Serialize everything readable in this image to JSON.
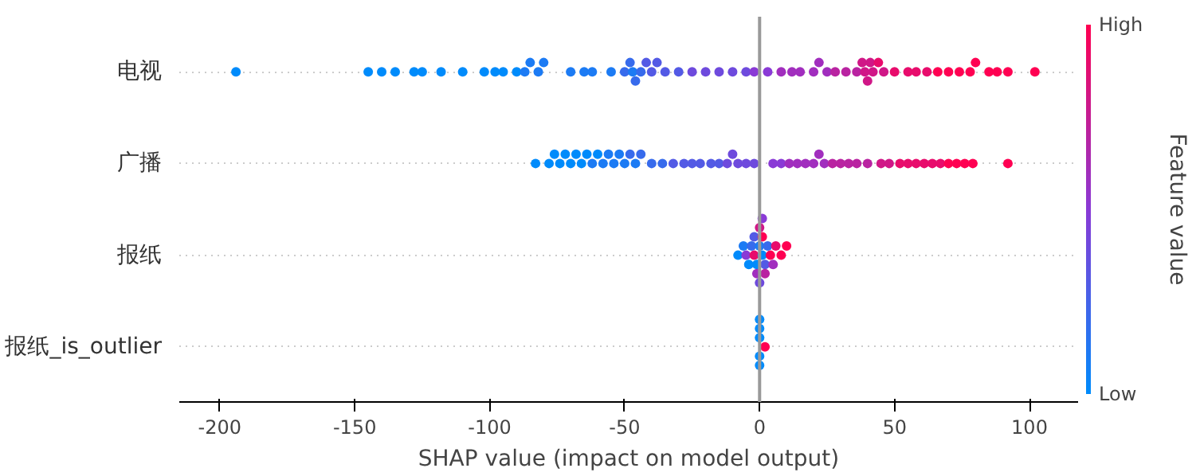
{
  "chart_data": {
    "type": "scatter",
    "xlabel": "SHAP value (impact on model output)",
    "clabel": "Feature value",
    "categories": [
      "电视",
      "广播",
      "报纸",
      "报纸_is_outlier"
    ],
    "orientation": "horizontal",
    "colors": [
      "#008bfb",
      "#8a3ad6",
      "#ff0052"
    ],
    "series": [
      {
        "x": [
          "电视",
          "电视",
          "电视",
          "电视",
          "电视",
          "电视",
          "电视",
          "电视",
          "电视",
          "电视",
          "电视",
          "电视",
          "电视",
          "电视",
          "电视",
          "电视",
          "电视",
          "电视",
          "电视",
          "电视",
          "电视",
          "电视",
          "电视",
          "电视",
          "电视",
          "电视",
          "电视",
          "电视",
          "电视",
          "电视",
          "电视",
          "电视",
          "电视",
          "电视",
          "电视",
          "电视",
          "电视",
          "电视",
          "电视",
          "电视",
          "电视",
          "电视",
          "电视",
          "电视",
          "电视",
          "电视",
          "电视",
          "电视",
          "电视",
          "电视",
          "电视",
          "电视",
          "电视",
          "电视",
          "电视",
          "电视",
          "电视",
          "电视",
          "电视",
          "电视",
          "电视",
          "电视",
          "电视",
          "电视",
          "电视",
          "电视"
        ],
        "values": [
          -194,
          -145,
          -140,
          -135,
          -128,
          -125,
          -118,
          -110,
          -102,
          -98,
          -95,
          -90,
          -87,
          -85,
          -82,
          -80,
          -70,
          -65,
          -62,
          -55,
          -50,
          -48,
          -47,
          -46,
          -44,
          -42,
          -40,
          -38,
          -35,
          -30,
          -25,
          -20,
          -15,
          -10,
          -5,
          -2,
          3,
          8,
          12,
          15,
          20,
          22,
          25,
          28,
          32,
          36,
          38,
          39,
          40,
          41,
          42,
          44,
          46,
          50,
          55,
          58,
          62,
          66,
          70,
          74,
          78,
          80,
          85,
          88,
          92,
          102
        ],
        "colors": [
          "#008bfb",
          "#008bfb",
          "#008bfb",
          "#008bfb",
          "#008bfb",
          "#008bfb",
          "#008bfb",
          "#008bfb",
          "#008bfb",
          "#008bfb",
          "#008bfb",
          "#008bfb",
          "#1c7bf4",
          "#1c7bf4",
          "#1c7bf4",
          "#1c7bf4",
          "#1c7bf4",
          "#1c7bf4",
          "#1c7bf4",
          "#1c7bf4",
          "#376bec",
          "#376bec",
          "#1c7bf4",
          "#376bec",
          "#376bec",
          "#535ae5",
          "#535ae5",
          "#535ae5",
          "#535ae5",
          "#535ae5",
          "#6e4add",
          "#6e4add",
          "#6e4add",
          "#6e4add",
          "#6e4add",
          "#8a3ad6",
          "#8a3ad6",
          "#a12ebe",
          "#a12ebe",
          "#a12ebe",
          "#a12ebe",
          "#a12ebe",
          "#a12ebe",
          "#b923a1",
          "#b923a1",
          "#b923a1",
          "#d01787",
          "#d01787",
          "#d01787",
          "#d01787",
          "#d01787",
          "#e80c6c",
          "#d01787",
          "#e80c6c",
          "#e80c6c",
          "#e80c6c",
          "#e80c6c",
          "#ff0052",
          "#ff0052",
          "#ff0052",
          "#ff0052",
          "#ff0052",
          "#ff0052",
          "#ff0052",
          "#ff0052",
          "#ff0052"
        ]
      },
      {
        "x": [
          "广播",
          "广播",
          "广播",
          "广播",
          "广播",
          "广播",
          "广播",
          "广播",
          "广播",
          "广播",
          "广播",
          "广播",
          "广播",
          "广播",
          "广播",
          "广播",
          "广播",
          "广播",
          "广播",
          "广播",
          "广播",
          "广播",
          "广播",
          "广播",
          "广播",
          "广播",
          "广播",
          "广播",
          "广播",
          "广播",
          "广播",
          "广播",
          "广播",
          "广播",
          "广播",
          "广播",
          "广播",
          "广播",
          "广播",
          "广播",
          "广播",
          "广播",
          "广播",
          "广播",
          "广播",
          "广播",
          "广播",
          "广播",
          "广播",
          "广播",
          "广播",
          "广播",
          "广播",
          "广播",
          "广播",
          "广播",
          "广播",
          "广播"
        ],
        "values": [
          -83,
          -78,
          -76,
          -74,
          -72,
          -70,
          -68,
          -66,
          -64,
          -62,
          -60,
          -58,
          -56,
          -54,
          -52,
          -50,
          -48,
          -46,
          -44,
          -40,
          -36,
          -32,
          -28,
          -25,
          -22,
          -18,
          -15,
          -12,
          -10,
          -8,
          -5,
          -2,
          5,
          8,
          11,
          14,
          17,
          20,
          22,
          24,
          27,
          30,
          33,
          36,
          40,
          45,
          48,
          52,
          55,
          58,
          61,
          64,
          67,
          70,
          73,
          76,
          79,
          92
        ],
        "colors": [
          "#008bfb",
          "#008bfb",
          "#008bfb",
          "#008bfb",
          "#008bfb",
          "#008bfb",
          "#008bfb",
          "#008bfb",
          "#008bfb",
          "#1c7bf4",
          "#008bfb",
          "#1c7bf4",
          "#1c7bf4",
          "#1c7bf4",
          "#1c7bf4",
          "#1c7bf4",
          "#376bec",
          "#1c7bf4",
          "#376bec",
          "#376bec",
          "#376bec",
          "#535ae5",
          "#535ae5",
          "#535ae5",
          "#535ae5",
          "#535ae5",
          "#535ae5",
          "#6e4add",
          "#6e4add",
          "#6e4add",
          "#6e4add",
          "#6e4add",
          "#8a3ad6",
          "#8a3ad6",
          "#a12ebe",
          "#a12ebe",
          "#a12ebe",
          "#a12ebe",
          "#a12ebe",
          "#a12ebe",
          "#b923a1",
          "#b923a1",
          "#b923a1",
          "#b923a1",
          "#b923a1",
          "#d01787",
          "#d01787",
          "#e80c6c",
          "#e80c6c",
          "#e80c6c",
          "#e80c6c",
          "#e80c6c",
          "#e80c6c",
          "#ff0052",
          "#ff0052",
          "#ff0052",
          "#ff0052",
          "#ff0052"
        ]
      },
      {
        "x": [
          "报纸",
          "报纸",
          "报纸",
          "报纸",
          "报纸",
          "报纸",
          "报纸",
          "报纸",
          "报纸",
          "报纸",
          "报纸",
          "报纸",
          "报纸",
          "报纸",
          "报纸",
          "报纸",
          "报纸",
          "报纸",
          "报纸",
          "报纸",
          "报纸",
          "报纸",
          "报纸"
        ],
        "values": [
          -8,
          -6,
          -5,
          -4,
          -3,
          -2,
          -2,
          -1,
          -1,
          0,
          0,
          0,
          1,
          1,
          1,
          2,
          2,
          3,
          4,
          5,
          6,
          8,
          10
        ],
        "colors": [
          "#008bfb",
          "#1c7bf4",
          "#8a3ad6",
          "#008bfb",
          "#376bec",
          "#e80c6c",
          "#535ae5",
          "#008bfb",
          "#a12ebe",
          "#1c7bf4",
          "#d01787",
          "#6e4add",
          "#008bfb",
          "#ff0052",
          "#8a3ad6",
          "#535ae5",
          "#b923a1",
          "#376bec",
          "#ff0052",
          "#a12ebe",
          "#e80c6c",
          "#ff0052",
          "#ff0052"
        ]
      },
      {
        "x": [
          "报纸_is_outlier",
          "报纸_is_outlier",
          "报纸_is_outlier",
          "报纸_is_outlier",
          "报纸_is_outlier",
          "报纸_is_outlier"
        ],
        "values": [
          2,
          0,
          0,
          0,
          0,
          0
        ],
        "colors": [
          "#ff0052",
          "#008bfb",
          "#008bfb",
          "#008bfb",
          "#008bfb",
          "#008bfb"
        ]
      }
    ],
    "xlim": [
      -215,
      118
    ],
    "xticks": [
      -200,
      -150,
      -100,
      -50,
      0,
      50,
      100
    ],
    "annotations": [
      "Low",
      "High"
    ],
    "ref_lines": [
      {
        "axis": "x",
        "value": 0,
        "color": "#999999"
      }
    ],
    "grid": "y",
    "marker": "circle"
  }
}
